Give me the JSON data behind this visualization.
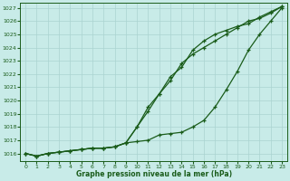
{
  "xlabel": "Graphe pression niveau de la mer (hPa)",
  "ylim": [
    1015.4,
    1027.4
  ],
  "xlim": [
    -0.5,
    23.5
  ],
  "xticks": [
    0,
    1,
    2,
    3,
    4,
    5,
    6,
    7,
    8,
    9,
    10,
    11,
    12,
    13,
    14,
    15,
    16,
    17,
    18,
    19,
    20,
    21,
    22,
    23
  ],
  "yticks": [
    1016,
    1017,
    1018,
    1019,
    1020,
    1021,
    1022,
    1023,
    1024,
    1025,
    1026,
    1027
  ],
  "bg_color": "#c8ebe8",
  "grid_color": "#aad4d0",
  "line_color": "#1a5c1a",
  "line1_y": [
    1016.0,
    1015.8,
    1016.0,
    1016.1,
    1016.2,
    1016.3,
    1016.4,
    1016.4,
    1016.5,
    1016.8,
    1018.0,
    1019.5,
    1020.5,
    1021.5,
    1022.8,
    1023.5,
    1024.0,
    1024.5,
    1025.0,
    1025.5,
    1026.0,
    1026.2,
    1026.6,
    1027.1
  ],
  "line2_y": [
    1016.0,
    1015.8,
    1016.0,
    1016.1,
    1016.2,
    1016.3,
    1016.4,
    1016.4,
    1016.5,
    1016.8,
    1018.0,
    1019.2,
    1020.5,
    1021.8,
    1022.5,
    1023.8,
    1024.5,
    1025.0,
    1025.3,
    1025.6,
    1025.8,
    1026.3,
    1026.7,
    1027.1
  ],
  "line3_y": [
    1016.0,
    1015.8,
    1016.0,
    1016.1,
    1016.2,
    1016.3,
    1016.4,
    1016.4,
    1016.5,
    1016.8,
    1016.9,
    1017.0,
    1017.4,
    1017.5,
    1017.6,
    1018.0,
    1018.5,
    1019.5,
    1020.8,
    1022.2,
    1023.8,
    1025.0,
    1026.0,
    1027.0
  ]
}
